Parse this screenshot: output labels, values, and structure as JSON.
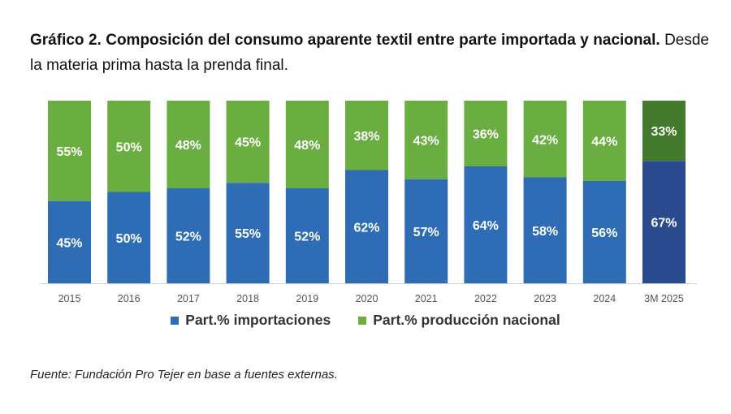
{
  "title": {
    "strong": "Gráfico 2. Composición del consumo aparente textil entre parte importada y nacional.",
    "desc": "Desde la materia prima hasta la prenda final."
  },
  "colors": {
    "import": "#2e6db5",
    "national": "#6aad41",
    "import_highlight": "#2a4a8e",
    "national_highlight": "#447a2c"
  },
  "chart_data": {
    "type": "bar",
    "stacked": true,
    "categories": [
      "2015",
      "2016",
      "2017",
      "2018",
      "2019",
      "2020",
      "2021",
      "2022",
      "2023",
      "2024",
      "3M 2025"
    ],
    "series": [
      {
        "name": "Part.% importaciones",
        "values": [
          45,
          50,
          52,
          55,
          52,
          62,
          57,
          64,
          58,
          56,
          67
        ]
      },
      {
        "name": "Part.% producción nacional",
        "values": [
          55,
          50,
          48,
          45,
          48,
          38,
          43,
          36,
          42,
          44,
          33
        ]
      }
    ],
    "value_format": "{v}%",
    "ylim": [
      0,
      100
    ],
    "highlighted_category": "3M 2025",
    "legend_position": "bottom"
  },
  "legend": {
    "import_label": "Part.% importaciones",
    "national_label": "Part.% producción nacional"
  },
  "source": "Fuente: Fundación Pro Tejer en base a fuentes externas."
}
